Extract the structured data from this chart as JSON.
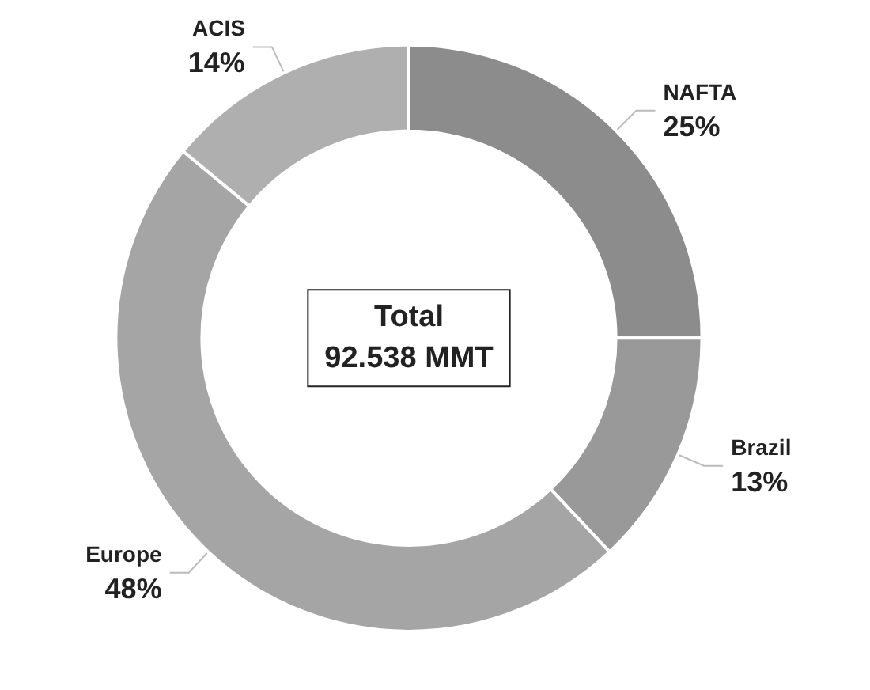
{
  "chart_data": {
    "type": "donut",
    "categories": [
      "NAFTA",
      "Brazil",
      "Europe",
      "ACIS"
    ],
    "values": [
      25,
      13,
      48,
      14
    ],
    "value_labels": [
      "25%",
      "13%",
      "48%",
      "14%"
    ],
    "colors": [
      "#8c8c8c",
      "#999999",
      "#a5a5a5",
      "#afafaf"
    ],
    "annotations": [
      "Total\n92.538 MMT"
    ]
  }
}
